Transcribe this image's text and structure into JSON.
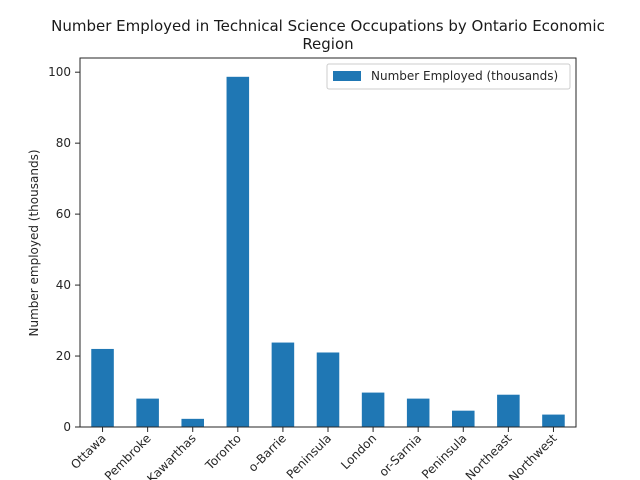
{
  "chart_data": {
    "type": "bar",
    "title_line1": "Number Employed in Technical Science Occupations by Ontario Economic",
    "title_line2": "Region",
    "xlabel": "",
    "ylabel": "Number employed (thousands)",
    "ylim": [
      0,
      104
    ],
    "yticks": [
      0,
      20,
      40,
      60,
      80,
      100
    ],
    "grid": false,
    "legend_position": "upper right",
    "categories": [
      "Ottawa",
      "Pembroke",
      "Kawarthas",
      "Toronto",
      "o-Barrie",
      "Peninsula",
      "London",
      "or-Sarnia",
      "Peninsula",
      "Northeast",
      "Northwest"
    ],
    "series": [
      {
        "name": "Number Employed (thousands)",
        "color": "#1f77b4",
        "values": [
          22.0,
          8.0,
          2.3,
          98.7,
          23.8,
          21.0,
          9.7,
          8.0,
          4.6,
          9.1,
          3.5
        ]
      }
    ]
  }
}
